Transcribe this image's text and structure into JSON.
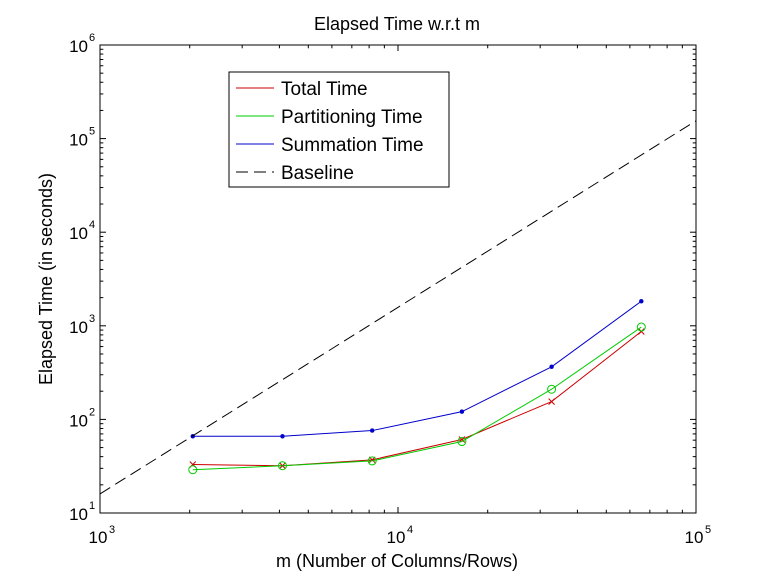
{
  "chart_data": {
    "type": "line",
    "title": "Elapsed Time w.r.t m",
    "xlabel": "m (Number of Columns/Rows)",
    "ylabel": "Elapsed Time (in seconds)",
    "xscale": "log",
    "yscale": "log",
    "xlim": [
      1000,
      100000
    ],
    "ylim": [
      10,
      1000000
    ],
    "x_ticks": [
      {
        "base": "10",
        "exp": "3",
        "value": 1000
      },
      {
        "base": "10",
        "exp": "4",
        "value": 10000
      },
      {
        "base": "10",
        "exp": "5",
        "value": 100000
      }
    ],
    "y_ticks": [
      {
        "base": "10",
        "exp": "1",
        "value": 10
      },
      {
        "base": "10",
        "exp": "2",
        "value": 100
      },
      {
        "base": "10",
        "exp": "3",
        "value": 1000
      },
      {
        "base": "10",
        "exp": "4",
        "value": 10000
      },
      {
        "base": "10",
        "exp": "5",
        "value": 100000
      },
      {
        "base": "10",
        "exp": "6",
        "value": 1000000
      }
    ],
    "grid": false,
    "legend_position": "top-left",
    "series": [
      {
        "name": "Total Time",
        "color": "#cc0000",
        "marker": "x",
        "x": [
          2048,
          4096,
          8192,
          16384,
          32768,
          65536
        ],
        "y": [
          33,
          32,
          37,
          61,
          155,
          870
        ]
      },
      {
        "name": "Partitioning Time",
        "color": "#00cc00",
        "marker": "circle",
        "x": [
          2048,
          4096,
          8192,
          16384,
          32768,
          65536
        ],
        "y": [
          29,
          32,
          36,
          58,
          210,
          970
        ]
      },
      {
        "name": "Summation Time",
        "color": "#0000cc",
        "marker": "dot",
        "x": [
          2048,
          4096,
          8192,
          16384,
          32768,
          65536
        ],
        "y": [
          66,
          66,
          76,
          121,
          365,
          1830
        ]
      },
      {
        "name": "Baseline",
        "color": "#000000",
        "marker": "none",
        "dash": "dashed",
        "x": [
          1000,
          100000
        ],
        "y": [
          16,
          155000
        ]
      }
    ]
  }
}
